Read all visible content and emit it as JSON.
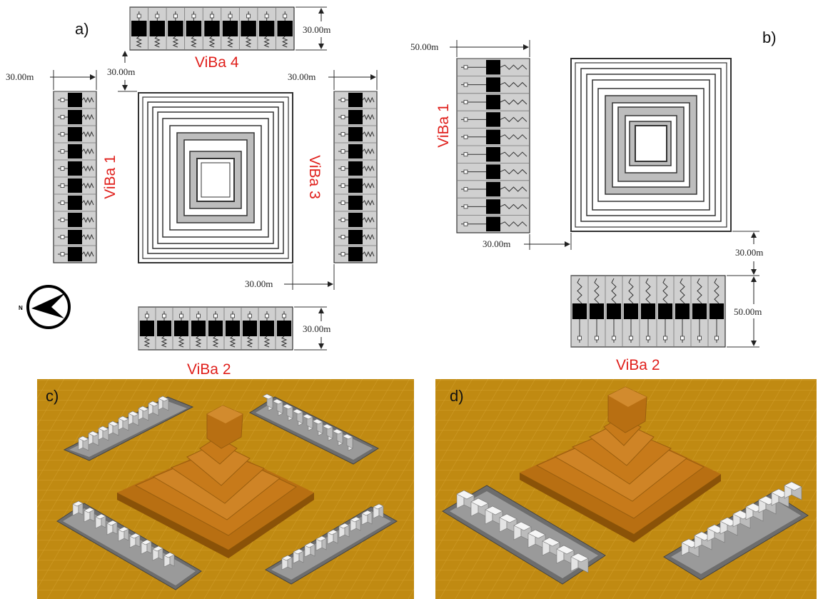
{
  "panels": {
    "a": {
      "label": "a)",
      "barriers": {
        "viba1": "ViBa 1",
        "viba2": "ViBa 2",
        "viba3": "ViBa 3",
        "viba4": "ViBa 4"
      },
      "dimensions": {
        "viba4_width": "30.00m",
        "gap_top": "30.00m",
        "viba1_width": "30.00m",
        "viba3_width": "30.00m",
        "gap_bottom": "30.00m",
        "viba2_width": "30.00m"
      },
      "compass_label": "N"
    },
    "b": {
      "label": "b)",
      "barriers": {
        "viba1": "ViBa 1",
        "viba2": "ViBa 2"
      },
      "dimensions": {
        "viba1_width": "50.00m",
        "gap_left": "30.00m",
        "gap_right": "30.00m",
        "viba2_width": "50.00m"
      }
    },
    "c": {
      "label": "c)"
    },
    "d": {
      "label": "d)"
    }
  },
  "colors": {
    "ground": "#c08a12",
    "pyramid": "#c77a1a",
    "barrier_box": "#d0d0d0",
    "mass_block": "#000000",
    "annotation": "#e0201c"
  }
}
